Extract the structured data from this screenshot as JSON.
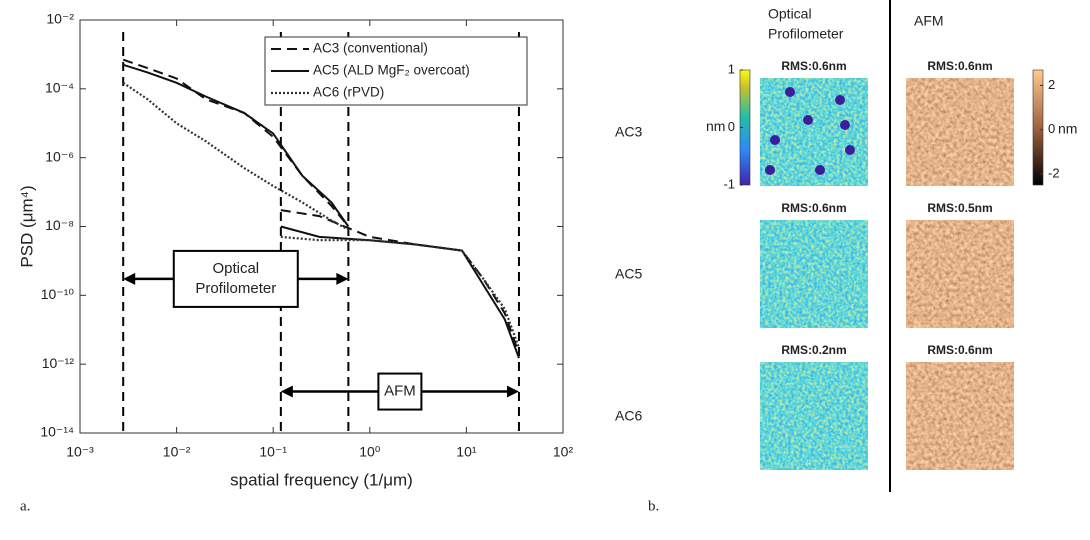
{
  "chart_data": {
    "type": "line",
    "xlabel": "spatial frequency (1/μm)",
    "ylabel": "PSD (μm⁴)",
    "xscale": "log",
    "yscale": "log",
    "xlim": [
      0.001,
      100
    ],
    "ylim": [
      1e-14,
      0.01
    ],
    "xticks": [
      {
        "value": 0.001,
        "label": "10⁻³"
      },
      {
        "value": 0.01,
        "label": "10⁻²"
      },
      {
        "value": 0.1,
        "label": "10⁻¹"
      },
      {
        "value": 1,
        "label": "10⁰"
      },
      {
        "value": 10,
        "label": "10¹"
      },
      {
        "value": 100,
        "label": "10²"
      }
    ],
    "yticks": [
      {
        "value": 1e-14,
        "label": "10⁻¹⁴"
      },
      {
        "value": 1e-12,
        "label": "10⁻¹²"
      },
      {
        "value": 1e-10,
        "label": "10⁻¹⁰"
      },
      {
        "value": 1e-08,
        "label": "10⁻⁸"
      },
      {
        "value": 1e-06,
        "label": "10⁻⁶"
      },
      {
        "value": 0.0001,
        "label": "10⁻⁴"
      },
      {
        "value": 0.01,
        "label": "10⁻²"
      }
    ],
    "legend": "upper right",
    "series": [
      {
        "name": "AC3 (conventional)",
        "color": "#111111",
        "linestyle": "dashed",
        "x": [
          0.0028,
          0.005,
          0.01,
          0.02,
          0.05,
          0.1,
          0.2,
          0.4,
          0.6,
          null,
          0.12,
          0.3,
          1,
          3,
          9,
          15,
          25,
          35
        ],
        "values": [
          0.0007,
          0.0004,
          0.0002,
          5e-05,
          2e-05,
          4e-06,
          3e-07,
          4e-08,
          1e-08,
          null,
          3e-08,
          2e-08,
          5e-09,
          3e-09,
          2e-09,
          3e-10,
          3e-11,
          2e-12
        ]
      },
      {
        "name": "AC5 (ALD MgF₂ overcoat)",
        "color": "#111111",
        "linestyle": "solid",
        "x": [
          0.0028,
          0.005,
          0.01,
          0.02,
          0.05,
          0.1,
          0.2,
          0.4,
          0.6,
          null,
          0.12,
          0.3,
          1,
          3,
          9,
          15,
          25,
          35
        ],
        "values": [
          0.0005,
          0.0003,
          0.00015,
          6e-05,
          2e-05,
          5e-06,
          3e-07,
          5e-08,
          1e-08,
          null,
          1e-08,
          5e-09,
          4e-09,
          3e-09,
          2e-09,
          2e-10,
          2e-11,
          1.5e-12
        ]
      },
      {
        "name": "AC6 (rPVD)",
        "color": "#333333",
        "linestyle": "dotted",
        "x": [
          0.0028,
          0.005,
          0.01,
          0.02,
          0.05,
          0.1,
          0.2,
          0.4,
          0.6,
          null,
          0.12,
          0.3,
          1,
          3,
          9,
          15,
          25,
          35
        ],
        "values": [
          0.00015,
          5e-05,
          1e-05,
          3e-06,
          5e-07,
          1.5e-07,
          5e-08,
          1.5e-08,
          8e-09,
          null,
          5e-09,
          4e-09,
          4e-09,
          3e-09,
          2e-09,
          3e-10,
          4e-11,
          3e-12
        ]
      }
    ],
    "vlines": [
      0.0028,
      0.12,
      0.6,
      35
    ],
    "annotations": [
      {
        "lines": [
          "Optical",
          "Profilometer"
        ],
        "x_from": 0.0028,
        "x_to": 0.6,
        "y": 3e-10
      },
      {
        "lines": [
          "AFM"
        ],
        "x_from": 0.12,
        "x_to": 35,
        "y": 1.6e-13
      }
    ]
  },
  "panel_b": {
    "column_headers": [
      {
        "lines": [
          "Optical",
          "Profilometer"
        ]
      },
      {
        "lines": [
          "AFM"
        ]
      }
    ],
    "rows": [
      {
        "label": "AC3",
        "rms": [
          "RMS:0.6nm",
          "RMS:0.6nm"
        ]
      },
      {
        "label": "AC5",
        "rms": [
          "RMS:0.6nm",
          "RMS:0.5nm"
        ]
      },
      {
        "label": "AC6",
        "rms": [
          "RMS:0.2nm",
          "RMS:0.6nm"
        ]
      }
    ],
    "colorbars": [
      {
        "unit": "nm",
        "lim": [
          -1,
          1
        ],
        "ticks": [
          1,
          0,
          -1
        ]
      },
      {
        "unit": "nm",
        "lim": [
          -2.5,
          2.7
        ],
        "ticks": [
          2,
          0,
          -2
        ]
      }
    ]
  },
  "captions": [
    "a.",
    "b."
  ]
}
